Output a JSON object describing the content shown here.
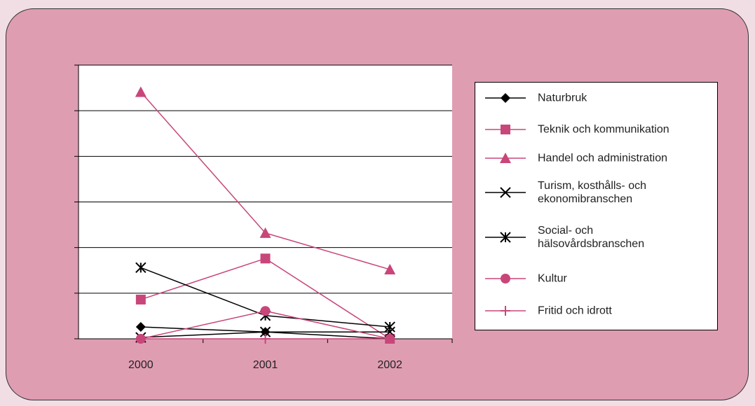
{
  "chart_data": {
    "type": "line",
    "categories": [
      "2000",
      "2001",
      "2002"
    ],
    "ylim": [
      0,
      6
    ],
    "yticks": [
      0,
      1,
      2,
      3,
      4,
      5,
      6
    ],
    "grid": true,
    "legend": "right",
    "series": [
      {
        "name": "Naturbruk",
        "color": "#000000",
        "marker": "diamond",
        "values": [
          0.26,
          0.15,
          0
        ]
      },
      {
        "name": "Teknik och kommunikation",
        "color": "#c8467a",
        "marker": "square",
        "values": [
          0.86,
          1.76,
          0
        ]
      },
      {
        "name": "Handel och administration",
        "color": "#c8467a",
        "marker": "triangle",
        "values": [
          5.41,
          2.32,
          1.52
        ]
      },
      {
        "name": "Turism, kosthålls- och ekonomibranschen",
        "color": "#000000",
        "marker": "x",
        "values": [
          0.03,
          0.15,
          0.15
        ]
      },
      {
        "name": "Social- och hälsovårdsbranschen",
        "color": "#000000",
        "marker": "asterisk",
        "values": [
          1.56,
          0.51,
          0.26
        ]
      },
      {
        "name": "Kultur",
        "color": "#c8467a",
        "marker": "circle",
        "values": [
          0,
          0.61,
          0
        ]
      },
      {
        "name": "Fritid och idrott",
        "color": "#c8467a",
        "marker": "plus",
        "values": [
          0,
          0,
          0
        ]
      }
    ]
  }
}
